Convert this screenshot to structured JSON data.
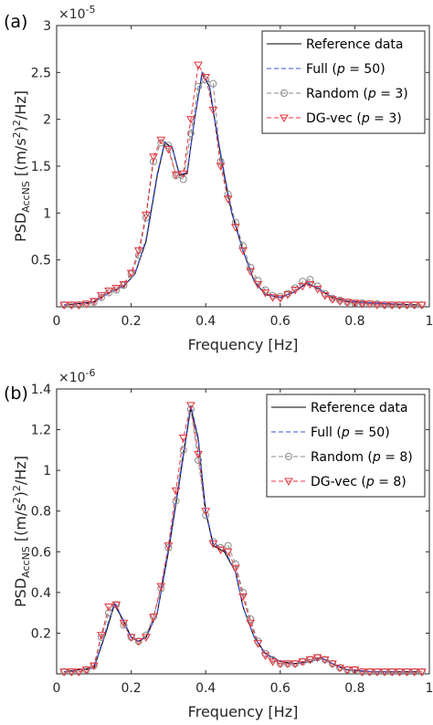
{
  "chart_data": [
    {
      "type": "line",
      "panel_label": "(a)",
      "xlabel": "Frequency [Hz]",
      "ylabel_main": "PSD",
      "ylabel_sub": "AccNS",
      "ylabel_rest": " [(m/s",
      "ylabel_sup": "2",
      "ylabel_end": ")",
      "ylabel_sup2": "2",
      "ylabel_tail": "/Hz]",
      "exponent_base": "×10",
      "exponent_power": "-5",
      "xlim": [
        0,
        1
      ],
      "ylim": [
        0,
        3
      ],
      "xticks": [
        0,
        0.2,
        0.4,
        0.6,
        0.8,
        1
      ],
      "xtick_labels": [
        "0",
        "0.2",
        "0.4",
        "0.6",
        "0.8",
        "1"
      ],
      "yticks": [
        0,
        0.5,
        1,
        1.5,
        2,
        2.5,
        3
      ],
      "ytick_labels": [
        "",
        "0.5",
        "1",
        "1.5",
        "2",
        "2.5",
        "3"
      ],
      "legend_position": "top-right",
      "legend": [
        {
          "text": "Reference data",
          "p": ""
        },
        {
          "text": "Full (",
          "p": " = 50)"
        },
        {
          "text": "Random (",
          "p": " = 3)"
        },
        {
          "text": "DG-vec (",
          "p": " = 3)"
        }
      ],
      "reference": {
        "x": [
          0.02,
          0.1,
          0.14,
          0.18,
          0.21,
          0.24,
          0.27,
          0.29,
          0.31,
          0.33,
          0.35,
          0.37,
          0.39,
          0.41,
          0.43,
          0.45,
          0.47,
          0.5,
          0.53,
          0.56,
          0.6,
          0.64,
          0.67,
          0.7,
          0.74,
          0.78,
          0.85,
          0.9,
          0.97
        ],
        "y": [
          0.02,
          0.05,
          0.15,
          0.22,
          0.35,
          0.7,
          1.4,
          1.75,
          1.7,
          1.4,
          1.42,
          2.0,
          2.48,
          2.35,
          1.85,
          1.4,
          1.0,
          0.6,
          0.27,
          0.13,
          0.1,
          0.16,
          0.25,
          0.2,
          0.1,
          0.06,
          0.04,
          0.03,
          0.02
        ]
      },
      "full": {
        "x": [
          0.02,
          0.1,
          0.14,
          0.18,
          0.21,
          0.24,
          0.27,
          0.29,
          0.31,
          0.33,
          0.35,
          0.37,
          0.39,
          0.41,
          0.43,
          0.45,
          0.47,
          0.5,
          0.53,
          0.56,
          0.6,
          0.64,
          0.67,
          0.7,
          0.74,
          0.78,
          0.85,
          0.9,
          0.97
        ],
        "y": [
          0.02,
          0.05,
          0.15,
          0.22,
          0.35,
          0.72,
          1.42,
          1.76,
          1.7,
          1.41,
          1.43,
          2.0,
          2.5,
          2.36,
          1.86,
          1.42,
          1.0,
          0.6,
          0.27,
          0.13,
          0.1,
          0.16,
          0.26,
          0.2,
          0.1,
          0.06,
          0.04,
          0.03,
          0.02
        ]
      },
      "random": {
        "x": [
          0.02,
          0.04,
          0.06,
          0.08,
          0.1,
          0.12,
          0.14,
          0.16,
          0.18,
          0.2,
          0.22,
          0.24,
          0.26,
          0.28,
          0.3,
          0.32,
          0.34,
          0.36,
          0.38,
          0.4,
          0.42,
          0.44,
          0.46,
          0.48,
          0.5,
          0.52,
          0.54,
          0.56,
          0.58,
          0.6,
          0.62,
          0.64,
          0.66,
          0.68,
          0.7,
          0.72,
          0.74,
          0.76,
          0.78,
          0.8,
          0.82,
          0.84,
          0.86,
          0.88,
          0.9,
          0.92,
          0.94,
          0.96,
          0.98
        ],
        "y": [
          0.02,
          0.02,
          0.02,
          0.03,
          0.05,
          0.1,
          0.15,
          0.18,
          0.23,
          0.35,
          0.55,
          0.95,
          1.55,
          1.75,
          1.72,
          1.4,
          1.36,
          1.85,
          2.35,
          2.42,
          2.38,
          1.55,
          1.2,
          0.9,
          0.65,
          0.42,
          0.28,
          0.18,
          0.12,
          0.11,
          0.14,
          0.2,
          0.27,
          0.29,
          0.22,
          0.14,
          0.09,
          0.07,
          0.05,
          0.04,
          0.04,
          0.03,
          0.03,
          0.02,
          0.02,
          0.02,
          0.02,
          0.02,
          0.02
        ]
      },
      "dgvec": {
        "x": [
          0.02,
          0.04,
          0.06,
          0.08,
          0.1,
          0.12,
          0.14,
          0.16,
          0.18,
          0.2,
          0.22,
          0.24,
          0.26,
          0.28,
          0.3,
          0.32,
          0.34,
          0.36,
          0.38,
          0.4,
          0.42,
          0.44,
          0.46,
          0.48,
          0.5,
          0.52,
          0.54,
          0.56,
          0.58,
          0.6,
          0.62,
          0.64,
          0.66,
          0.68,
          0.7,
          0.72,
          0.74,
          0.76,
          0.78,
          0.8,
          0.82,
          0.84,
          0.86,
          0.88,
          0.9,
          0.92,
          0.94,
          0.96,
          0.98
        ],
        "y": [
          0.02,
          0.02,
          0.02,
          0.03,
          0.06,
          0.12,
          0.17,
          0.2,
          0.24,
          0.36,
          0.6,
          0.98,
          1.6,
          1.78,
          1.68,
          1.41,
          1.42,
          2.0,
          2.58,
          2.45,
          2.1,
          1.5,
          1.15,
          0.85,
          0.6,
          0.38,
          0.24,
          0.15,
          0.1,
          0.09,
          0.13,
          0.18,
          0.22,
          0.24,
          0.19,
          0.12,
          0.08,
          0.06,
          0.05,
          0.04,
          0.03,
          0.03,
          0.02,
          0.02,
          0.02,
          0.02,
          0.02,
          0.02,
          0.02
        ]
      }
    },
    {
      "type": "line",
      "panel_label": "(b)",
      "xlabel": "Frequency [Hz]",
      "ylabel_main": "PSD",
      "ylabel_sub": "AccNS",
      "ylabel_rest": " [(m/s",
      "ylabel_sup": "2",
      "ylabel_end": ")",
      "ylabel_sup2": "2",
      "ylabel_tail": "/Hz]",
      "exponent_base": "×10",
      "exponent_power": "-6",
      "xlim": [
        0,
        1
      ],
      "ylim": [
        0,
        1.4
      ],
      "xticks": [
        0,
        0.2,
        0.4,
        0.6,
        0.8,
        1
      ],
      "xtick_labels": [
        "0",
        "0.2",
        "0.4",
        "0.6",
        "0.8",
        "1"
      ],
      "yticks": [
        0,
        0.2,
        0.4,
        0.6,
        0.8,
        1,
        1.2,
        1.4
      ],
      "ytick_labels": [
        "",
        "0.2",
        "0.4",
        "0.6",
        "0.8",
        "1",
        "1.2",
        "1.4"
      ],
      "legend_position": "top-right",
      "legend": [
        {
          "text": "Reference data",
          "p": ""
        },
        {
          "text": "Full (",
          "p": " = 50)"
        },
        {
          "text": "Random (",
          "p": " = 8)"
        },
        {
          "text": "DG-vec (",
          "p": " = 8)"
        }
      ],
      "reference": {
        "x": [
          0.02,
          0.1,
          0.13,
          0.155,
          0.18,
          0.2,
          0.22,
          0.24,
          0.27,
          0.3,
          0.33,
          0.36,
          0.38,
          0.4,
          0.42,
          0.45,
          0.48,
          0.5,
          0.53,
          0.56,
          0.6,
          0.64,
          0.68,
          0.71,
          0.74,
          0.78,
          0.85,
          0.9,
          0.97
        ],
        "y": [
          0.01,
          0.03,
          0.19,
          0.34,
          0.26,
          0.18,
          0.16,
          0.18,
          0.3,
          0.6,
          0.95,
          1.31,
          1.15,
          0.8,
          0.63,
          0.6,
          0.5,
          0.33,
          0.18,
          0.1,
          0.06,
          0.05,
          0.06,
          0.08,
          0.05,
          0.02,
          0.01,
          0.01,
          0.01
        ]
      },
      "full": {
        "x": [
          0.02,
          0.1,
          0.13,
          0.155,
          0.18,
          0.2,
          0.22,
          0.24,
          0.27,
          0.3,
          0.33,
          0.36,
          0.38,
          0.4,
          0.42,
          0.45,
          0.48,
          0.5,
          0.53,
          0.56,
          0.6,
          0.64,
          0.68,
          0.71,
          0.74,
          0.78,
          0.85,
          0.9,
          0.97
        ],
        "y": [
          0.01,
          0.03,
          0.2,
          0.35,
          0.26,
          0.18,
          0.16,
          0.18,
          0.3,
          0.61,
          0.96,
          1.32,
          1.16,
          0.8,
          0.64,
          0.61,
          0.5,
          0.33,
          0.18,
          0.1,
          0.06,
          0.05,
          0.06,
          0.08,
          0.05,
          0.02,
          0.01,
          0.01,
          0.01
        ]
      },
      "random": {
        "x": [
          0.02,
          0.04,
          0.06,
          0.08,
          0.1,
          0.12,
          0.14,
          0.16,
          0.18,
          0.2,
          0.22,
          0.24,
          0.26,
          0.28,
          0.3,
          0.32,
          0.34,
          0.36,
          0.38,
          0.4,
          0.42,
          0.44,
          0.46,
          0.48,
          0.5,
          0.52,
          0.54,
          0.56,
          0.58,
          0.6,
          0.62,
          0.64,
          0.66,
          0.68,
          0.7,
          0.72,
          0.74,
          0.76,
          0.78,
          0.8,
          0.82,
          0.84,
          0.86,
          0.88,
          0.9,
          0.92,
          0.94,
          0.96,
          0.98
        ],
        "y": [
          0.01,
          0.01,
          0.01,
          0.02,
          0.04,
          0.18,
          0.3,
          0.34,
          0.24,
          0.18,
          0.16,
          0.19,
          0.28,
          0.42,
          0.62,
          0.85,
          1.1,
          1.3,
          1.05,
          0.78,
          0.65,
          0.62,
          0.63,
          0.54,
          0.4,
          0.27,
          0.16,
          0.1,
          0.07,
          0.05,
          0.05,
          0.05,
          0.06,
          0.07,
          0.08,
          0.07,
          0.05,
          0.03,
          0.02,
          0.02,
          0.01,
          0.01,
          0.01,
          0.01,
          0.01,
          0.01,
          0.01,
          0.01,
          0.01
        ]
      },
      "dgvec": {
        "x": [
          0.02,
          0.04,
          0.06,
          0.08,
          0.1,
          0.12,
          0.14,
          0.16,
          0.18,
          0.2,
          0.22,
          0.24,
          0.26,
          0.28,
          0.3,
          0.32,
          0.34,
          0.36,
          0.38,
          0.4,
          0.42,
          0.44,
          0.46,
          0.48,
          0.5,
          0.52,
          0.54,
          0.56,
          0.58,
          0.6,
          0.62,
          0.64,
          0.66,
          0.68,
          0.7,
          0.72,
          0.74,
          0.76,
          0.78,
          0.8,
          0.82,
          0.84,
          0.86,
          0.88,
          0.9,
          0.92,
          0.94,
          0.96,
          0.98
        ],
        "y": [
          0.01,
          0.01,
          0.01,
          0.02,
          0.04,
          0.19,
          0.33,
          0.34,
          0.25,
          0.18,
          0.16,
          0.18,
          0.28,
          0.43,
          0.63,
          0.9,
          1.16,
          1.32,
          1.08,
          0.8,
          0.64,
          0.61,
          0.6,
          0.52,
          0.38,
          0.25,
          0.15,
          0.09,
          0.06,
          0.05,
          0.05,
          0.05,
          0.06,
          0.07,
          0.08,
          0.07,
          0.05,
          0.03,
          0.02,
          0.02,
          0.01,
          0.01,
          0.01,
          0.01,
          0.01,
          0.01,
          0.01,
          0.01,
          0.01
        ]
      }
    }
  ],
  "colors": {
    "reference": "#000000",
    "full": "#3b4fd6",
    "random": "#8a8a8a",
    "dgvec": "#e8333b",
    "axis": "#262626"
  }
}
